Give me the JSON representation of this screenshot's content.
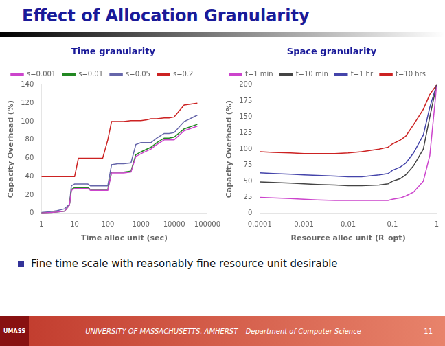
{
  "title": "Effect of Allocation Granularity",
  "annotations": [
    "Fine time scale with reasonably fine resource unit desirable",
    "UNIVERSITY OF MASSACHUSETTS, AMHERST – Department of Computer Science",
    "11",
    "UMASS"
  ],
  "chart_data": [
    {
      "type": "line",
      "title": "Time granularity",
      "x_label": "Time alloc unit (sec)",
      "y_label": "Capacity Overhead (%)",
      "log": "x",
      "grid": false,
      "legend": "upper left",
      "xlim": [
        1,
        100000
      ],
      "xticks": [
        1,
        10,
        100,
        1000,
        10000,
        100000
      ],
      "ylim": [
        0,
        140
      ],
      "yticks": [
        0,
        20,
        40,
        60,
        80,
        100,
        120,
        140
      ],
      "series": [
        {
          "name": "s=0.001",
          "color": "#cc44cc",
          "x": [
            1,
            2,
            3,
            5,
            7,
            8,
            10,
            13,
            20,
            25,
            30,
            50,
            70,
            100,
            130,
            200,
            300,
            500,
            700,
            1000,
            1500,
            2000,
            3000,
            5000,
            7000,
            10000,
            20000,
            50000
          ],
          "values": [
            0.5,
            1.0,
            1.5,
            2.5,
            9,
            25,
            27,
            27,
            27,
            27,
            25,
            25,
            25,
            25,
            44,
            44,
            44,
            45,
            62,
            65,
            68,
            70,
            75,
            80,
            80,
            80,
            90,
            95
          ]
        },
        {
          "name": "s=0.01",
          "color": "#228822",
          "x": [
            1,
            2,
            3,
            5,
            7,
            8,
            10,
            13,
            20,
            25,
            30,
            50,
            70,
            100,
            130,
            200,
            300,
            500,
            700,
            1000,
            1500,
            2000,
            3000,
            5000,
            7000,
            10000,
            20000,
            50000
          ],
          "values": [
            0.5,
            1.0,
            1.5,
            2.5,
            9,
            26,
            28,
            28,
            28,
            28,
            26,
            26,
            26,
            26,
            45,
            45,
            45,
            46,
            64,
            67,
            70,
            72,
            77,
            82,
            82,
            83,
            92,
            97
          ]
        },
        {
          "name": "s=0.05",
          "color": "#6666aa",
          "x": [
            1,
            2,
            3,
            5,
            7,
            8,
            10,
            13,
            20,
            25,
            30,
            50,
            70,
            100,
            130,
            200,
            300,
            500,
            700,
            1000,
            1500,
            2000,
            3000,
            5000,
            7000,
            10000,
            20000,
            50000
          ],
          "values": [
            1,
            2,
            3,
            5,
            10,
            30,
            32,
            32,
            32,
            32,
            30,
            30,
            30,
            30,
            53,
            54,
            54,
            55,
            75,
            77,
            77,
            77,
            82,
            87,
            87,
            88,
            100,
            107
          ]
        },
        {
          "name": "s=0.2",
          "color": "#cc2222",
          "x": [
            1,
            2,
            3,
            5,
            7,
            8,
            10,
            13,
            30,
            50,
            70,
            100,
            130,
            200,
            300,
            500,
            700,
            1000,
            1500,
            2000,
            3000,
            5000,
            7000,
            10000,
            20000,
            50000
          ],
          "values": [
            40,
            40,
            40,
            40,
            40,
            40,
            40,
            60,
            60,
            60,
            60,
            80,
            100,
            100,
            100,
            101,
            101,
            101,
            102,
            103,
            103,
            104,
            104,
            105,
            118,
            120
          ]
        }
      ]
    },
    {
      "type": "line",
      "title": "Space granularity",
      "x_label": "Resource alloc unit (R_opt)",
      "y_label": "Capacity Overhead (%)",
      "log": "x",
      "grid": false,
      "legend": "upper left",
      "xlim": [
        0.0001,
        1
      ],
      "xticks": [
        0.0001,
        0.001,
        0.01,
        0.1,
        1
      ],
      "ylim": [
        0,
        200
      ],
      "yticks": [
        0,
        25,
        50,
        75,
        100,
        125,
        150,
        175,
        200
      ],
      "series": [
        {
          "name": "t=1 min",
          "color": "#cc44cc",
          "x": [
            0.0001,
            0.0002,
            0.0005,
            0.001,
            0.002,
            0.005,
            0.01,
            0.02,
            0.05,
            0.08,
            0.1,
            0.15,
            0.2,
            0.3,
            0.5,
            0.7,
            1.0
          ],
          "values": [
            25,
            24,
            23,
            22,
            21,
            20,
            20,
            20,
            20,
            20,
            22,
            24,
            27,
            33,
            50,
            90,
            198
          ]
        },
        {
          "name": "t=10 min",
          "color": "#444444",
          "x": [
            0.0001,
            0.0002,
            0.0005,
            0.001,
            0.002,
            0.005,
            0.01,
            0.02,
            0.05,
            0.08,
            0.1,
            0.15,
            0.2,
            0.3,
            0.5,
            0.7,
            1.0
          ],
          "values": [
            49,
            48,
            47,
            46,
            45,
            44,
            43,
            43,
            44,
            46,
            50,
            54,
            60,
            74,
            100,
            150,
            200
          ]
        },
        {
          "name": "t=1 hr",
          "color": "#4444aa",
          "x": [
            0.0001,
            0.0002,
            0.0005,
            0.001,
            0.002,
            0.005,
            0.01,
            0.02,
            0.05,
            0.08,
            0.1,
            0.15,
            0.2,
            0.3,
            0.5,
            0.7,
            1.0
          ],
          "values": [
            63,
            62,
            61,
            60,
            59,
            58,
            57,
            57,
            60,
            62,
            67,
            72,
            78,
            94,
            122,
            165,
            200
          ]
        },
        {
          "name": "t=10 hrs",
          "color": "#cc2222",
          "x": [
            0.0001,
            0.0002,
            0.0005,
            0.001,
            0.002,
            0.005,
            0.01,
            0.02,
            0.05,
            0.08,
            0.1,
            0.15,
            0.2,
            0.3,
            0.5,
            0.7,
            1.0
          ],
          "values": [
            96,
            95,
            94,
            93,
            93,
            93,
            94,
            96,
            100,
            103,
            108,
            114,
            120,
            138,
            162,
            185,
            200
          ]
        }
      ]
    }
  ]
}
